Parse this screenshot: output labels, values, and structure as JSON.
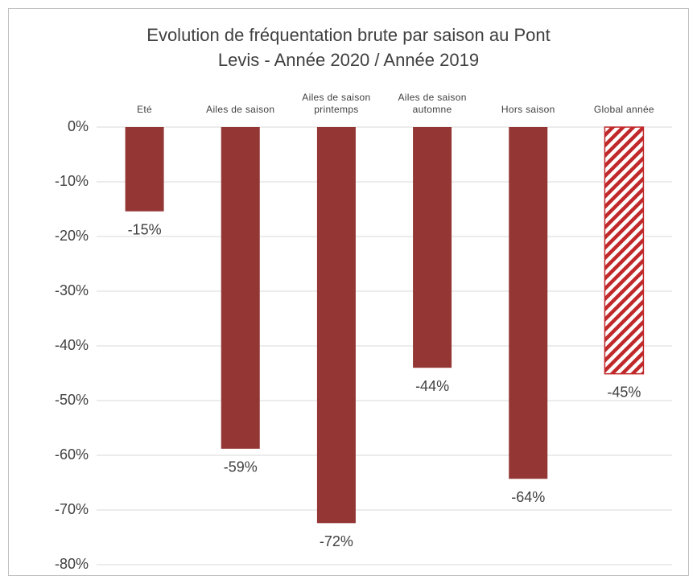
{
  "chart_data": {
    "type": "bar",
    "title": [
      "Evolution de fréquentation brute par saison au Pont",
      "Levis  - Année 2020 / Année 2019"
    ],
    "categories": [
      "Eté",
      "Ailes de saison",
      "Ailes de saison printemps",
      "Ailes de saison automne",
      "Hors saison",
      "Global année"
    ],
    "values": [
      -15.4,
      -58.8,
      -72.4,
      -44.0,
      -64.3,
      -45.1
    ],
    "value_labels": [
      "-15%",
      "-59%",
      "-72%",
      "-44%",
      "-64%",
      "-45%"
    ],
    "color": "#943634",
    "hatch_color": "#c0282a",
    "hatched": [
      false,
      false,
      false,
      false,
      false,
      true
    ],
    "ylim": [
      -80,
      0
    ],
    "yticks": [
      {
        "value": 0,
        "label": "0%"
      },
      {
        "value": -10,
        "label": "-10%"
      },
      {
        "value": -20,
        "label": "-20%"
      },
      {
        "value": -30,
        "label": "-30%"
      },
      {
        "value": -40,
        "label": "-40%"
      },
      {
        "value": -50,
        "label": "-50%"
      },
      {
        "value": -60,
        "label": "-60%"
      },
      {
        "value": -70,
        "label": "-70%"
      },
      {
        "value": -80,
        "label": "-80%"
      }
    ],
    "grid": true
  }
}
